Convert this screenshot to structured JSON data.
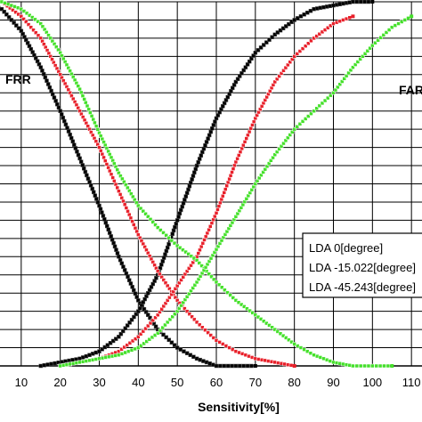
{
  "chart_data": {
    "type": "scatter",
    "xlabel": "Sensitivity[%]",
    "ylabel": "",
    "xlim": [
      0,
      120
    ],
    "ylim": [
      0,
      100
    ],
    "x_ticks": [
      10,
      20,
      30,
      40,
      50,
      60,
      70,
      80,
      90,
      100,
      110
    ],
    "grid": true,
    "legend_position": "lower-right",
    "annotations": [
      {
        "text": "FRR"
      },
      {
        "text": "FAR"
      }
    ],
    "series": [
      {
        "name": "LDA 0[degree]",
        "color": "#000000",
        "curves": [
          {
            "label": "FRR",
            "x": [
              0,
              5,
              10,
              15,
              20,
              25,
              30,
              35,
              40,
              45,
              50,
              55,
              60,
              65,
              70
            ],
            "y": [
              100,
              98,
              92,
              82,
              70,
              57,
              44,
              30,
              18,
              10,
              5,
              2,
              0,
              0,
              0
            ]
          },
          {
            "label": "FAR",
            "x": [
              15,
              25,
              30,
              35,
              40,
              45,
              50,
              55,
              60,
              65,
              70,
              75,
              80,
              85,
              90,
              95,
              100
            ],
            "y": [
              0,
              2,
              4,
              8,
              15,
              25,
              40,
              55,
              68,
              78,
              86,
              91,
              95,
              98,
              99,
              100,
              100
            ]
          }
        ]
      },
      {
        "name": "LDA -15.022[degree]",
        "color": "#e8202a",
        "curves": [
          {
            "label": "FRR",
            "x": [
              5,
              10,
              15,
              20,
              25,
              30,
              35,
              40,
              45,
              50,
              55,
              60,
              65,
              70,
              75,
              80
            ],
            "y": [
              100,
              96,
              90,
              80,
              70,
              60,
              48,
              36,
              26,
              18,
              12,
              7,
              4,
              2,
              1,
              0
            ]
          },
          {
            "label": "FAR",
            "x": [
              20,
              25,
              30,
              35,
              40,
              45,
              50,
              55,
              60,
              65,
              70,
              75,
              80,
              85,
              90,
              95
            ],
            "y": [
              0,
              1,
              2,
              4,
              8,
              14,
              22,
              30,
              42,
              56,
              68,
              78,
              85,
              90,
              94,
              96
            ]
          }
        ]
      },
      {
        "name": "LDA -45.243[degree]",
        "color": "#44e02a",
        "curves": [
          {
            "label": "FRR",
            "x": [
              5,
              10,
              15,
              20,
              25,
              30,
              35,
              40,
              45,
              50,
              55,
              60,
              65,
              70,
              75,
              80,
              85,
              90,
              95,
              100,
              105
            ],
            "y": [
              100,
              98,
              94,
              86,
              76,
              64,
              53,
              44,
              38,
              33,
              29,
              23,
              18,
              14,
              10,
              6,
              3,
              1,
              0,
              0,
              0
            ]
          },
          {
            "label": "FAR",
            "x": [
              20,
              25,
              30,
              35,
              40,
              45,
              50,
              55,
              60,
              65,
              70,
              75,
              80,
              85,
              90,
              95,
              100,
              105,
              110
            ],
            "y": [
              0,
              1,
              2,
              3,
              5,
              9,
              15,
              23,
              32,
              41,
              50,
              58,
              65,
              70,
              75,
              82,
              88,
              93,
              96
            ]
          }
        ]
      }
    ]
  }
}
